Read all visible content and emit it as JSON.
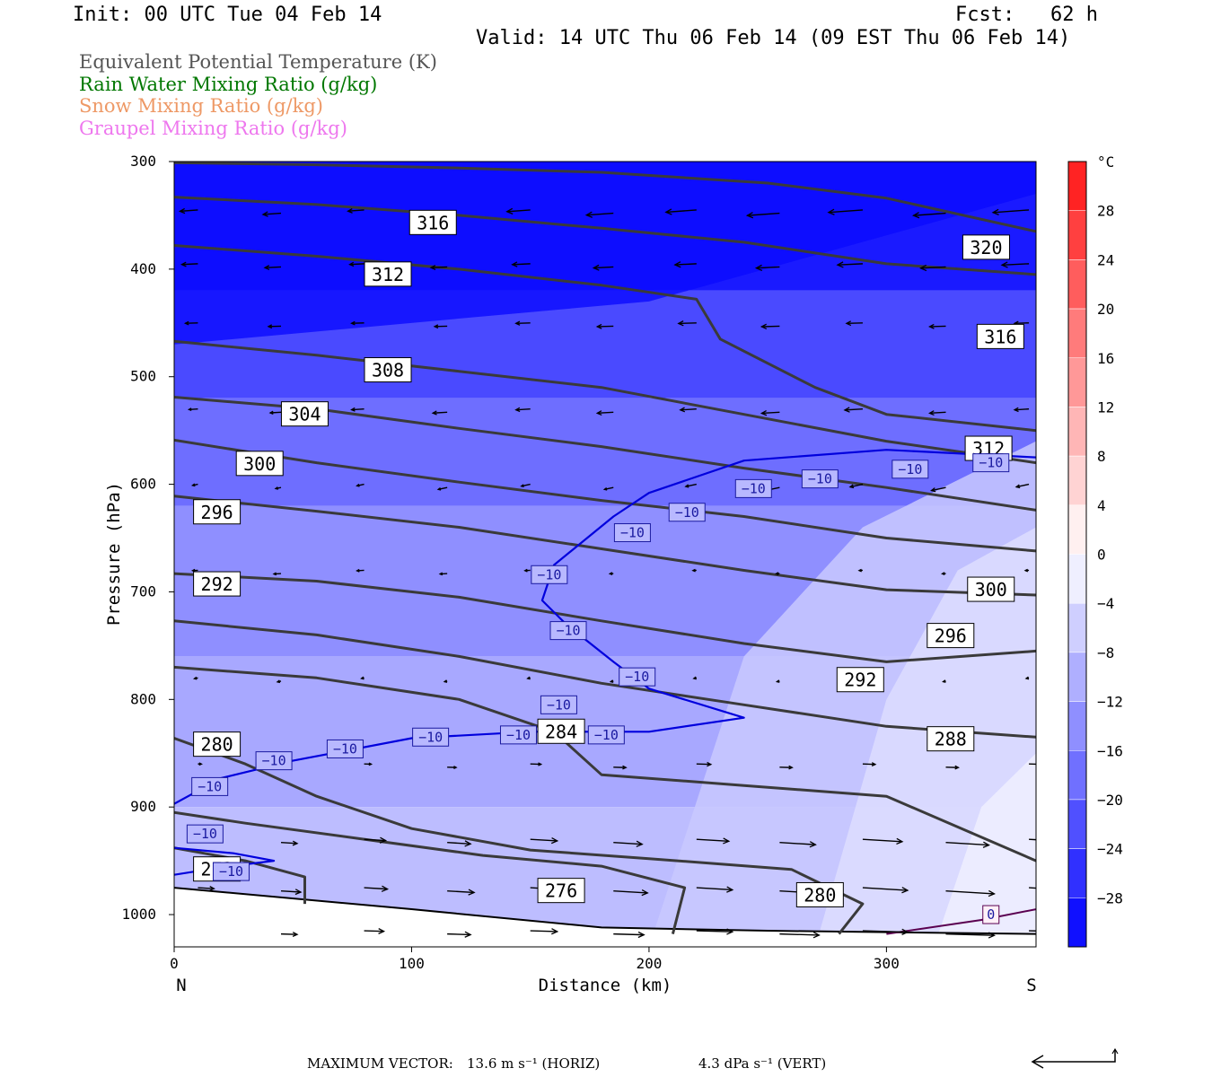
{
  "header": {
    "init": "Init: 00 UTC Tue 04 Feb 14",
    "fcst": "Fcst:   62 h",
    "valid": "Valid: 14 UTC Thu 06 Feb 14 (09 EST Thu 06 Feb 14)"
  },
  "fields": [
    {
      "label": "Equivalent Potential Temperature (K)",
      "color": "#555555"
    },
    {
      "label": "Rain Water Mixing Ratio (g/kg)",
      "color": "#007700"
    },
    {
      "label": "Snow Mixing Ratio (g/kg)",
      "color": "#ee9966"
    },
    {
      "label": "Graupel Mixing Ratio (g/kg)",
      "color": "#ee77ee"
    }
  ],
  "footer": {
    "label": "MAXIMUM VECTOR:",
    "horiz": "13.6 m s⁻¹ (HORIZ)",
    "vert": "4.3 dPa s⁻¹ (VERT)"
  },
  "chart_data": {
    "type": "cross-section",
    "xlabel": "Distance (km)",
    "ylabel": "Pressure (hPa)",
    "xlim": [
      0,
      363
    ],
    "ylim": [
      1030,
      300
    ],
    "x_ticks": [
      0,
      100,
      200,
      300
    ],
    "y_ticks": [
      300,
      400,
      500,
      600,
      700,
      800,
      900,
      1000
    ],
    "x_end_labels": {
      "left": "N",
      "right": "S"
    },
    "colorbar": {
      "unit": "°C",
      "tick_labels": [
        "28",
        "24",
        "20",
        "16",
        "12",
        "8",
        "4",
        "0",
        "−4",
        "−8",
        "−12",
        "−16",
        "−20",
        "−24",
        "−28"
      ],
      "tick_values": [
        28,
        24,
        20,
        16,
        12,
        8,
        4,
        0,
        -4,
        -8,
        -12,
        -16,
        -20,
        -24,
        -28
      ],
      "range": [
        -32,
        32
      ]
    },
    "theta_e_contours": [
      {
        "value": 320,
        "label": "320",
        "path": [
          [
            0,
            301
          ],
          [
            60,
            303
          ],
          [
            120,
            306
          ],
          [
            180,
            310
          ],
          [
            250,
            320
          ],
          [
            300,
            334
          ],
          [
            363,
            365
          ]
        ],
        "label_at": [
          342,
          380
        ]
      },
      {
        "value": 316,
        "label": "316",
        "path": [
          [
            0,
            333
          ],
          [
            60,
            340
          ],
          [
            120,
            350
          ],
          [
            180,
            362
          ],
          [
            240,
            375
          ],
          [
            300,
            395
          ],
          [
            363,
            405
          ]
        ],
        "label_at": [
          109,
          357
        ]
      },
      {
        "value": 316,
        "label": "316",
        "path": [],
        "label_at": [
          348,
          463
        ]
      },
      {
        "value": 312,
        "label": "312",
        "path": [
          [
            0,
            378
          ],
          [
            60,
            388
          ],
          [
            120,
            400
          ],
          [
            180,
            415
          ],
          [
            220,
            428
          ],
          [
            230,
            465
          ],
          [
            270,
            510
          ],
          [
            300,
            535
          ],
          [
            363,
            550
          ]
        ],
        "label_at": [
          90,
          405
        ]
      },
      {
        "value": 312,
        "label": "312",
        "path": [],
        "label_at": [
          343,
          567
        ]
      },
      {
        "value": 308,
        "label": "308",
        "path": [
          [
            0,
            467
          ],
          [
            60,
            480
          ],
          [
            120,
            495
          ],
          [
            180,
            510
          ],
          [
            240,
            535
          ],
          [
            300,
            560
          ],
          [
            363,
            580
          ]
        ],
        "label_at": [
          90,
          494
        ]
      },
      {
        "value": 304,
        "label": "304",
        "path": [
          [
            0,
            519
          ],
          [
            60,
            530
          ],
          [
            120,
            548
          ],
          [
            180,
            565
          ],
          [
            240,
            585
          ],
          [
            300,
            603
          ],
          [
            363,
            624
          ]
        ],
        "label_at": [
          55,
          535
        ]
      },
      {
        "value": 300,
        "label": "300",
        "path": [
          [
            0,
            559
          ],
          [
            60,
            580
          ],
          [
            120,
            598
          ],
          [
            180,
            615
          ],
          [
            240,
            630
          ],
          [
            300,
            650
          ],
          [
            363,
            662
          ]
        ],
        "label_at": [
          36,
          581
        ]
      },
      {
        "value": 300,
        "label": "300",
        "path": [],
        "label_at": [
          344,
          698
        ]
      },
      {
        "value": 296,
        "label": "296",
        "path": [
          [
            0,
            611
          ],
          [
            60,
            625
          ],
          [
            120,
            640
          ],
          [
            180,
            660
          ],
          [
            240,
            680
          ],
          [
            300,
            698
          ],
          [
            363,
            703
          ]
        ],
        "label_at": [
          18,
          626
        ]
      },
      {
        "value": 296,
        "label": "296",
        "path": [],
        "label_at": [
          327,
          741
        ]
      },
      {
        "value": 292,
        "label": "292",
        "path": [
          [
            0,
            683
          ],
          [
            60,
            690
          ],
          [
            120,
            705
          ],
          [
            180,
            727
          ],
          [
            240,
            748
          ],
          [
            300,
            765
          ],
          [
            363,
            755
          ]
        ],
        "label_at": [
          18,
          693
        ]
      },
      {
        "value": 292,
        "label": "292",
        "path": [],
        "label_at": [
          289,
          782
        ]
      },
      {
        "value": 288,
        "label": "288",
        "path": [
          [
            0,
            727
          ],
          [
            60,
            740
          ],
          [
            120,
            760
          ],
          [
            180,
            785
          ],
          [
            240,
            805
          ],
          [
            300,
            825
          ],
          [
            363,
            835
          ]
        ],
        "label_at": [
          327,
          837
        ]
      },
      {
        "value": 284,
        "label": "284",
        "path": [
          [
            0,
            770
          ],
          [
            60,
            780
          ],
          [
            120,
            800
          ],
          [
            160,
            830
          ],
          [
            180,
            870
          ],
          [
            240,
            880
          ],
          [
            300,
            890
          ],
          [
            363,
            950
          ]
        ],
        "label_at": [
          163,
          830
        ]
      },
      {
        "value": 280,
        "label": "280",
        "path": [
          [
            0,
            836
          ],
          [
            30,
            860
          ],
          [
            60,
            890
          ],
          [
            100,
            920
          ],
          [
            150,
            940
          ],
          [
            200,
            948
          ],
          [
            260,
            958
          ],
          [
            290,
            990
          ],
          [
            280,
            1018
          ]
        ],
        "label_at": [
          18,
          842
        ]
      },
      {
        "value": 280,
        "label": "280",
        "path": [],
        "label_at": [
          272,
          982
        ]
      },
      {
        "value": 276,
        "label": "276",
        "path": [
          [
            0,
            905
          ],
          [
            30,
            915
          ],
          [
            80,
            930
          ],
          [
            130,
            945
          ],
          [
            180,
            955
          ],
          [
            215,
            975
          ],
          [
            210,
            1018
          ]
        ],
        "label_at": [
          163,
          978
        ]
      },
      {
        "value": 272,
        "label": "272",
        "path": [
          [
            0,
            938
          ],
          [
            30,
            950
          ],
          [
            55,
            965
          ],
          [
            55,
            990
          ]
        ],
        "label_at": [
          18,
          958
        ]
      }
    ],
    "temperature_contours": [
      {
        "value": -10,
        "path": [
          [
            0,
            897
          ],
          [
            20,
            873
          ],
          [
            50,
            857
          ],
          [
            100,
            836
          ],
          [
            150,
            830
          ],
          [
            200,
            830
          ],
          [
            240,
            817
          ],
          [
            200,
            790
          ],
          [
            185,
            765
          ],
          [
            165,
            730
          ],
          [
            155,
            708
          ],
          [
            160,
            675
          ],
          [
            185,
            630
          ],
          [
            200,
            608
          ],
          [
            240,
            578
          ],
          [
            300,
            568
          ],
          [
            363,
            575
          ]
        ]
      },
      {
        "value": -10,
        "path": [
          [
            0,
            938
          ],
          [
            25,
            943
          ],
          [
            42,
            950
          ],
          [
            20,
            956
          ],
          [
            0,
            963
          ]
        ]
      }
    ],
    "temperature_labels": [
      {
        "label": "−10",
        "at": [
          15,
          881
        ]
      },
      {
        "label": "−10",
        "at": [
          42,
          857
        ]
      },
      {
        "label": "−10",
        "at": [
          72,
          846
        ]
      },
      {
        "label": "−10",
        "at": [
          108,
          835
        ]
      },
      {
        "label": "−10",
        "at": [
          145,
          833
        ]
      },
      {
        "label": "−10",
        "at": [
          182,
          833
        ]
      },
      {
        "label": "−10",
        "at": [
          162,
          805
        ]
      },
      {
        "label": "−10",
        "at": [
          195,
          779
        ]
      },
      {
        "label": "−10",
        "at": [
          166,
          736
        ]
      },
      {
        "label": "−10",
        "at": [
          158,
          684
        ]
      },
      {
        "label": "−10",
        "at": [
          193,
          645
        ]
      },
      {
        "label": "−10",
        "at": [
          216,
          626
        ]
      },
      {
        "label": "−10",
        "at": [
          244,
          604
        ]
      },
      {
        "label": "−10",
        "at": [
          272,
          595
        ]
      },
      {
        "label": "−10",
        "at": [
          310,
          586
        ]
      },
      {
        "label": "−10",
        "at": [
          344,
          580
        ]
      },
      {
        "label": "−10",
        "at": [
          13,
          925
        ]
      },
      {
        "label": "−10",
        "at": [
          24,
          960
        ]
      },
      {
        "label": "0",
        "at": [
          344,
          1000
        ]
      }
    ],
    "wind_rows": [
      {
        "p": 345,
        "u": -2.2,
        "w": 0.12,
        "len": [
          20,
          20,
          18,
          22,
          26,
          30,
          34,
          36,
          38,
          36,
          40
        ]
      },
      {
        "p": 395,
        "u": -2.0,
        "w": 0.08,
        "len": [
          18,
          18,
          16,
          18,
          20,
          22,
          24,
          26,
          28,
          28,
          30
        ]
      },
      {
        "p": 450,
        "u": -1.8,
        "w": 0.05,
        "len": [
          14,
          14,
          14,
          14,
          16,
          18,
          20,
          20,
          18,
          18,
          16
        ]
      },
      {
        "p": 530,
        "u": -1.4,
        "w": 0.1,
        "len": [
          10,
          12,
          14,
          16,
          16,
          18,
          18,
          20,
          20,
          18,
          16
        ]
      },
      {
        "p": 600,
        "u": -0.8,
        "w": 0.35,
        "len": [
          6,
          6,
          8,
          10,
          10,
          10,
          12,
          14,
          14,
          16,
          14
        ]
      },
      {
        "p": 680,
        "u": -0.6,
        "w": 0.1,
        "len": [
          6,
          8,
          8,
          8,
          6,
          4,
          4,
          4,
          4,
          4,
          4
        ]
      },
      {
        "p": 780,
        "u": -0.3,
        "w": 0.35,
        "len": [
          4,
          4,
          3,
          3,
          3,
          3,
          3,
          3,
          3,
          3,
          3
        ]
      },
      {
        "p": 860,
        "u": 1.0,
        "w": -0.05,
        "len": [
          4,
          6,
          8,
          10,
          12,
          14,
          16,
          14,
          14,
          14,
          12
        ]
      },
      {
        "p": 930,
        "u": 2.0,
        "w": -0.1,
        "len": [
          14,
          18,
          24,
          26,
          30,
          32,
          36,
          40,
          44,
          48,
          48
        ]
      },
      {
        "p": 975,
        "u": 2.4,
        "w": -0.1,
        "len": [
          18,
          22,
          26,
          30,
          34,
          38,
          40,
          44,
          50,
          54,
          50
        ]
      },
      {
        "p": 1015,
        "u": 2.6,
        "w": -0.05,
        "len": [
          0,
          18,
          22,
          26,
          30,
          34,
          40,
          44,
          50,
          54,
          58
        ]
      }
    ]
  }
}
